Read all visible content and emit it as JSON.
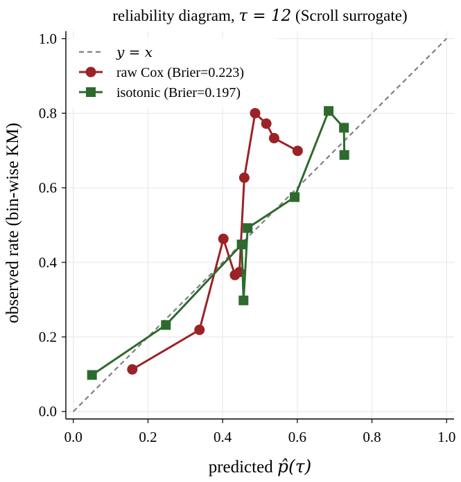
{
  "chart_data": {
    "type": "line",
    "title": {
      "prefix": "reliability diagram, ",
      "math": "τ = 12",
      "suffix": " (Scroll surrogate)"
    },
    "xlabel": {
      "prefix": "predicted ",
      "math": "p̂(τ)"
    },
    "ylabel": "observed rate (bin-wise KM)",
    "xlim": [
      -0.02,
      1.02
    ],
    "ylim": [
      -0.02,
      1.02
    ],
    "xticks": [
      "0.0",
      "0.2",
      "0.4",
      "0.6",
      "0.8",
      "1.0"
    ],
    "yticks": [
      "0.0",
      "0.2",
      "0.4",
      "0.6",
      "0.8",
      "1.0"
    ],
    "grid": true,
    "legend": "top-left",
    "diagonal": {
      "name": "y = x",
      "color": "#808080"
    },
    "series": [
      {
        "name": "raw Cox (Brier=0.223)",
        "color": "#9b2226",
        "marker": "circle",
        "x": [
          0.158,
          0.338,
          0.402,
          0.433,
          0.445,
          0.458,
          0.487,
          0.517,
          0.538,
          0.601
        ],
        "y": [
          0.113,
          0.219,
          0.463,
          0.366,
          0.374,
          0.627,
          0.8,
          0.772,
          0.733,
          0.699
        ]
      },
      {
        "name": "isotonic (Brier=0.197)",
        "color": "#2d6a2e",
        "marker": "square",
        "x": [
          0.05,
          0.248,
          0.451,
          0.456,
          0.467,
          0.593,
          0.684,
          0.725,
          0.726
        ],
        "y": [
          0.098,
          0.232,
          0.448,
          0.298,
          0.492,
          0.575,
          0.806,
          0.761,
          0.688
        ]
      }
    ]
  }
}
